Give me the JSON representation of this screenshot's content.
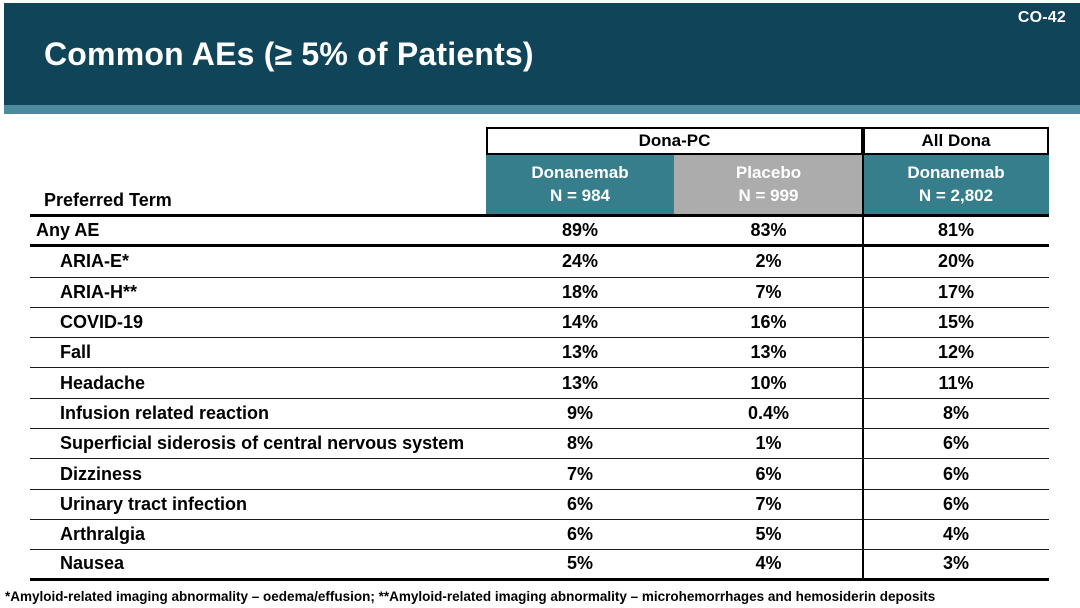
{
  "slide": {
    "code": "CO-42",
    "title": "Common AEs (≥ 5% of Patients)",
    "footnote": "*Amyloid-related imaging abnormality – oedema/effusion; **Amyloid-related imaging abnormality – microhemorrhages and hemosiderin deposits"
  },
  "colors": {
    "title_bar": "#104459",
    "accent_strip": "#4B8B9D",
    "teal_cell": "#377E8D",
    "gray_cell": "#ACACAC"
  },
  "chart_data": {
    "type": "table",
    "title": "Common AEs (≥ 5% of Patients)",
    "row_header_label": "Preferred Term",
    "column_groups": [
      {
        "label": "Dona-PC",
        "span": 2
      },
      {
        "label": "All Dona",
        "span": 1
      }
    ],
    "columns": [
      {
        "label": "Donanemab",
        "n_label": "N = 984",
        "group": "Dona-PC"
      },
      {
        "label": "Placebo",
        "n_label": "N = 999",
        "group": "Dona-PC"
      },
      {
        "label": "Donanemab",
        "n_label": "N = 2,802",
        "group": "All Dona"
      }
    ],
    "rows": [
      {
        "term": "Any AE",
        "indent": false,
        "values": [
          "89%",
          "83%",
          "81%"
        ]
      },
      {
        "term": "ARIA-E*",
        "indent": true,
        "values": [
          "24%",
          "2%",
          "20%"
        ]
      },
      {
        "term": "ARIA-H**",
        "indent": true,
        "values": [
          "18%",
          "7%",
          "17%"
        ]
      },
      {
        "term": "COVID-19",
        "indent": true,
        "values": [
          "14%",
          "16%",
          "15%"
        ]
      },
      {
        "term": "Fall",
        "indent": true,
        "values": [
          "13%",
          "13%",
          "12%"
        ]
      },
      {
        "term": "Headache",
        "indent": true,
        "values": [
          "13%",
          "10%",
          "11%"
        ]
      },
      {
        "term": "Infusion related reaction",
        "indent": true,
        "values": [
          "9%",
          "0.4%",
          "8%"
        ]
      },
      {
        "term": "Superficial siderosis of central nervous system",
        "indent": true,
        "values": [
          "8%",
          "1%",
          "6%"
        ]
      },
      {
        "term": "Dizziness",
        "indent": true,
        "values": [
          "7%",
          "6%",
          "6%"
        ]
      },
      {
        "term": "Urinary tract infection",
        "indent": true,
        "values": [
          "6%",
          "7%",
          "6%"
        ]
      },
      {
        "term": "Arthralgia",
        "indent": true,
        "values": [
          "6%",
          "5%",
          "4%"
        ]
      },
      {
        "term": "Nausea",
        "indent": true,
        "values": [
          "5%",
          "4%",
          "3%"
        ]
      }
    ]
  }
}
